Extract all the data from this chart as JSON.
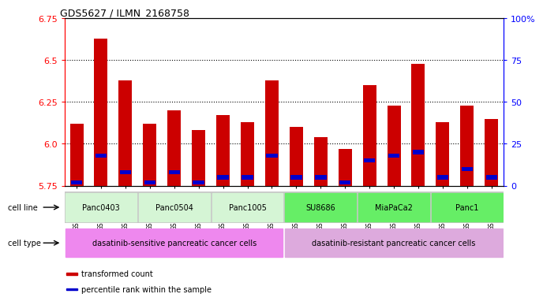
{
  "title": "GDS5627 / ILMN_2168758",
  "samples": [
    "GSM1435684",
    "GSM1435685",
    "GSM1435686",
    "GSM1435687",
    "GSM1435688",
    "GSM1435689",
    "GSM1435690",
    "GSM1435691",
    "GSM1435692",
    "GSM1435693",
    "GSM1435694",
    "GSM1435695",
    "GSM1435696",
    "GSM1435697",
    "GSM1435698",
    "GSM1435699",
    "GSM1435700",
    "GSM1435701"
  ],
  "transformed_count": [
    6.12,
    6.63,
    6.38,
    6.12,
    6.2,
    6.08,
    6.17,
    6.13,
    6.38,
    6.1,
    6.04,
    5.97,
    6.35,
    6.23,
    6.48,
    6.13,
    6.23,
    6.15
  ],
  "percentile_rank": [
    2,
    18,
    8,
    2,
    8,
    2,
    5,
    5,
    18,
    5,
    5,
    2,
    15,
    18,
    20,
    5,
    10,
    5
  ],
  "ymin": 5.75,
  "ymax": 6.75,
  "yticks_left": [
    5.75,
    6.0,
    6.25,
    6.5,
    6.75
  ],
  "yticks_right": [
    0,
    25,
    50,
    75,
    100
  ],
  "cell_lines": [
    {
      "label": "Panc0403",
      "start": 0,
      "end": 2,
      "color": "#d5f5d5"
    },
    {
      "label": "Panc0504",
      "start": 3,
      "end": 5,
      "color": "#d5f5d5"
    },
    {
      "label": "Panc1005",
      "start": 6,
      "end": 8,
      "color": "#d5f5d5"
    },
    {
      "label": "SU8686",
      "start": 9,
      "end": 11,
      "color": "#66ee66"
    },
    {
      "label": "MiaPaCa2",
      "start": 12,
      "end": 14,
      "color": "#66ee66"
    },
    {
      "label": "Panc1",
      "start": 15,
      "end": 17,
      "color": "#66ee66"
    }
  ],
  "cell_types": [
    {
      "label": "dasatinib-sensitive pancreatic cancer cells",
      "start": 0,
      "end": 8,
      "color": "#ee88ee"
    },
    {
      "label": "dasatinib-resistant pancreatic cancer cells",
      "start": 9,
      "end": 17,
      "color": "#ddaadd"
    }
  ],
  "bar_color": "#cc0000",
  "pct_color": "#0000cc",
  "bg_color": "#ffffff",
  "legend_items": [
    {
      "label": "transformed count",
      "color": "#cc0000"
    },
    {
      "label": "percentile rank within the sample",
      "color": "#0000cc"
    }
  ]
}
